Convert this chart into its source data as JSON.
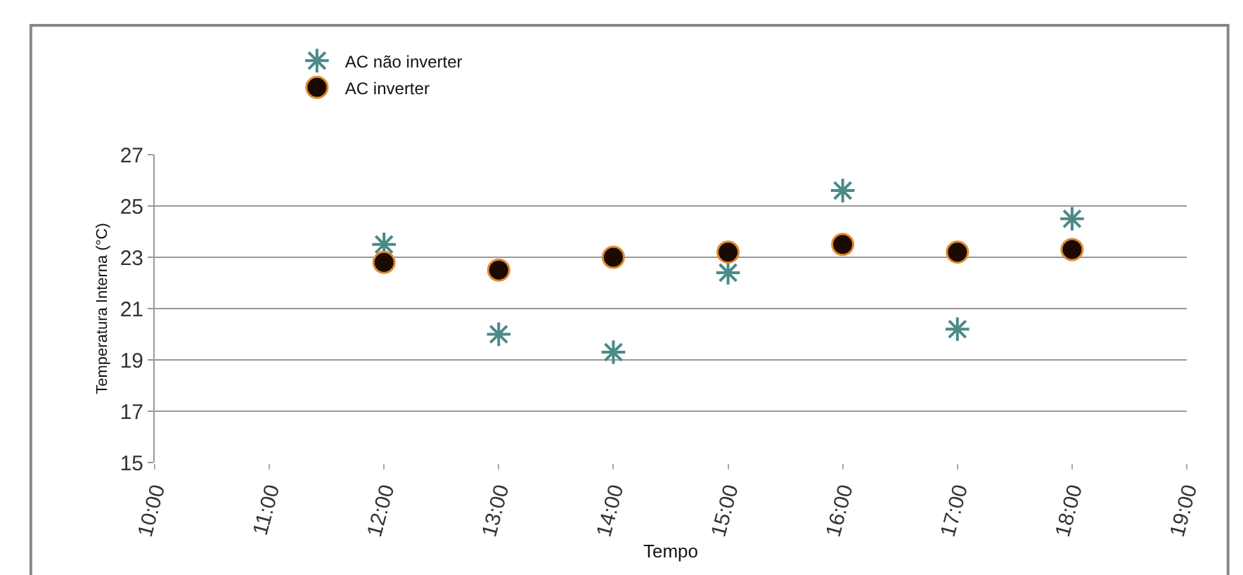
{
  "chart_data": {
    "type": "scatter",
    "xlabel": "Tempo",
    "ylabel": "Temperatura Interna (°C)",
    "x": [
      12,
      13,
      14,
      15,
      16,
      17,
      18
    ],
    "series": [
      {
        "name": "AC não inverter",
        "color": "#4a8a8a",
        "marker": "cross",
        "values": [
          23.5,
          20.0,
          19.3,
          22.4,
          25.6,
          20.2,
          24.5
        ]
      },
      {
        "name": "AC inverter",
        "color": "#1a0a00",
        "marker": "circle",
        "values": [
          22.8,
          22.5,
          23.0,
          23.2,
          23.5,
          23.2,
          23.3
        ]
      }
    ],
    "xlim": [
      10,
      19
    ],
    "xticks": [
      {
        "value": 10,
        "label": "10:00"
      },
      {
        "value": 11,
        "label": "11:00"
      },
      {
        "value": 12,
        "label": "12:00"
      },
      {
        "value": 13,
        "label": "13:00"
      },
      {
        "value": 14,
        "label": "14:00"
      },
      {
        "value": 15,
        "label": "15:00"
      },
      {
        "value": 16,
        "label": "16:00"
      },
      {
        "value": 17,
        "label": "17:00"
      },
      {
        "value": 18,
        "label": "18:00"
      },
      {
        "value": 19,
        "label": "19:00"
      }
    ],
    "ylim": [
      15,
      27
    ],
    "yticks": [
      15,
      17,
      19,
      21,
      23,
      25,
      27
    ],
    "grid": "y",
    "legend": "top left"
  }
}
